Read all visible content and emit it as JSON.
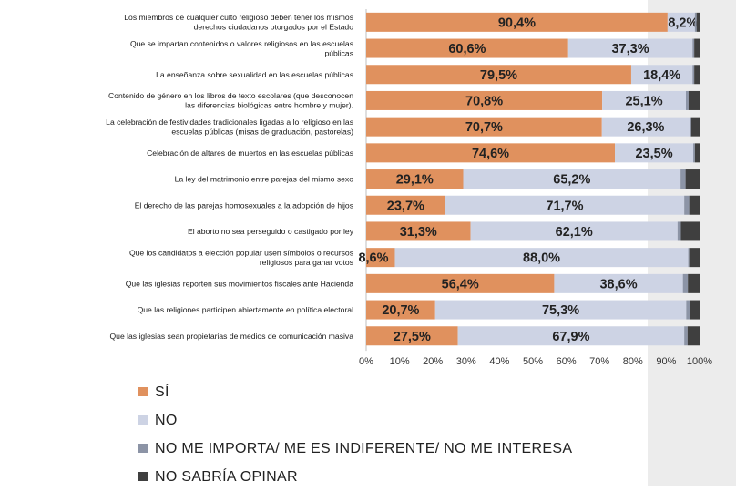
{
  "colors": {
    "si": "#e0915e",
    "no": "#cdd3e4",
    "indiferente": "#8c94a6",
    "no_sabria": "#3f3f3f"
  },
  "legend": [
    {
      "label": "SÍ",
      "color_key": "si"
    },
    {
      "label": "NO",
      "color_key": "no"
    },
    {
      "label": "NO ME IMPORTA/ ME ES INDIFERENTE/ NO ME INTERESA",
      "color_key": "indiferente"
    },
    {
      "label": "NO SABRÍA OPINAR",
      "color_key": "no_sabria"
    }
  ],
  "chart_data": {
    "type": "bar",
    "orientation": "horizontal",
    "stacked": true,
    "xlim": [
      0,
      100
    ],
    "x_ticks": [
      "0%",
      "10%",
      "20%",
      "30%",
      "40%",
      "50%",
      "60%",
      "70%",
      "80%",
      "90%",
      "100%"
    ],
    "categories": [
      [
        "Los miembros de cualquier culto religioso deben tener los mismos",
        "derechos ciudadanos otorgados por el Estado"
      ],
      [
        "Que se impartan contenidos o valores religiosos en las escuelas",
        "públicas"
      ],
      [
        "La enseñanza sobre sexualidad en las escuelas públicas"
      ],
      [
        "Contenido de género en los libros de texto escolares (que desconocen",
        "las diferencias biológicas entre hombre y mujer)."
      ],
      [
        "La celebración de festividades tradicionales ligadas a lo religioso en las",
        "escuelas públicas (misas de graduación, pastorelas)"
      ],
      [
        "Celebración de altares de muertos en las escuelas públicas"
      ],
      [
        "La ley del matrimonio entre parejas del mismo sexo"
      ],
      [
        "El derecho de las parejas homosexuales a la adopción de hijos"
      ],
      [
        "El aborto no sea perseguido o castigado por ley"
      ],
      [
        "Que los candidatos a elección popular usen símbolos o recursos",
        "religiosos para ganar votos"
      ],
      [
        "Que las iglesias reporten sus movimientos fiscales ante Hacienda"
      ],
      [
        "Que las religiones participen abiertamente en política electoral"
      ],
      [
        "Que las iglesias sean propietarias de medios de comunicación masiva"
      ]
    ],
    "series": [
      {
        "name": "SÍ",
        "color_key": "si",
        "values": [
          90.4,
          60.6,
          79.5,
          70.8,
          70.7,
          74.6,
          29.1,
          23.7,
          31.3,
          8.6,
          56.4,
          20.7,
          27.5
        ]
      },
      {
        "name": "NO",
        "color_key": "no",
        "values": [
          8.2,
          37.3,
          18.4,
          25.1,
          26.3,
          23.5,
          65.2,
          71.7,
          62.1,
          88.0,
          38.6,
          75.3,
          67.9
        ]
      },
      {
        "name": "NO ME IMPORTA/ ME ES INDIFERENTE/ NO ME INTERESA",
        "color_key": "indiferente",
        "values": [
          0.5,
          0.5,
          0.5,
          0.8,
          0.5,
          0.5,
          1.5,
          1.5,
          1.0,
          0.3,
          1.5,
          1.0,
          1.0
        ]
      },
      {
        "name": "NO SABRÍA OPINAR",
        "color_key": "no_sabria",
        "values": [
          0.9,
          1.6,
          1.6,
          3.3,
          2.5,
          1.4,
          4.2,
          3.1,
          5.6,
          3.1,
          3.5,
          3.0,
          3.6
        ]
      }
    ],
    "value_labels": {
      "SÍ": [
        "90,4%",
        "60,6%",
        "79,5%",
        "70,8%",
        "70,7%",
        "74,6%",
        "29,1%",
        "23,7%",
        "31,3%",
        "8,6%",
        "56,4%",
        "20,7%",
        "27,5%"
      ],
      "NO": [
        "8,2%",
        "37,3%",
        "18,4%",
        "25,1%",
        "26,3%",
        "23,5%",
        "65,2%",
        "71,7%",
        "62,1%",
        "88,0%",
        "38,6%",
        "75,3%",
        "67,9%"
      ]
    }
  }
}
